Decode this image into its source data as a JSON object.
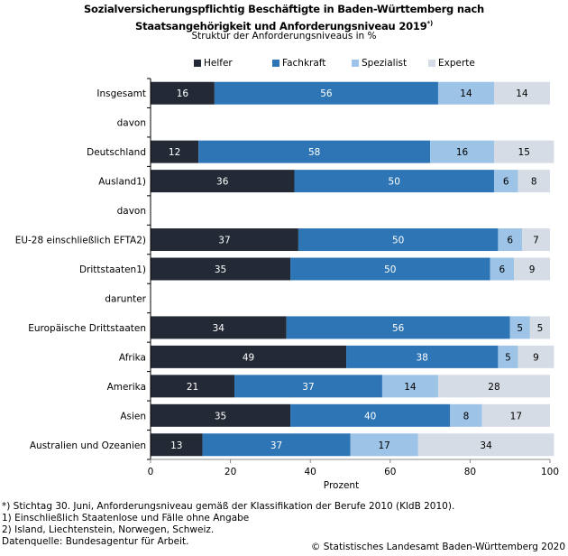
{
  "chart_data": {
    "type": "bar",
    "orientation": "horizontal",
    "stacked": true,
    "title": "Sozialversicherungspflichtig Beschäftigte in Baden-Württemberg nach Staatsangehörigkeit und Anforderungsniveau 2019",
    "title_line1": "Sozialversicherungspflichtig Beschäftigte in Baden-Württemberg nach",
    "title_line2": "Staatsangehörigkeit und Anforderungsniveau 2019",
    "title_mark": "*)",
    "subtitle": "Struktur der Anforderungsniveaus in %",
    "xlabel": "Prozent",
    "ylabel": "",
    "xlim": [
      0,
      100
    ],
    "xticks": [
      0,
      20,
      40,
      60,
      80,
      100
    ],
    "legend_position": "top",
    "categories": [
      "Insgesamt",
      "davon",
      "Deutschland",
      "Ausland1)",
      "davon",
      "EU-28 einschließlich EFTA2)",
      "Drittstaaten1)",
      "darunter",
      "Europäische Drittstaaten",
      "Afrika",
      "Amerika",
      "Asien",
      "Australien und Ozeanien"
    ],
    "series": [
      {
        "name": "Helfer",
        "color": "#232a36",
        "label_color": "#ffffff",
        "values": [
          16,
          null,
          12,
          36,
          null,
          37,
          35,
          null,
          34,
          49,
          21,
          35,
          13
        ]
      },
      {
        "name": "Fachkraft",
        "color": "#2e75b6",
        "label_color": "#ffffff",
        "values": [
          56,
          null,
          58,
          50,
          null,
          50,
          50,
          null,
          56,
          38,
          37,
          40,
          37
        ]
      },
      {
        "name": "Spezialist",
        "color": "#9dc3e6",
        "label_color": "#000000",
        "values": [
          14,
          null,
          16,
          6,
          null,
          6,
          6,
          null,
          5,
          5,
          14,
          8,
          17
        ]
      },
      {
        "name": "Experte",
        "color": "#d6dce5",
        "label_color": "#000000",
        "values": [
          14,
          null,
          15,
          8,
          null,
          7,
          9,
          null,
          5,
          9,
          28,
          17,
          34
        ]
      }
    ]
  },
  "footnotes": [
    "*) Stichtag 30. Juni, Anforderungsniveau gemäß der Klassifikation der Berufe 2010 (KldB 2010).",
    "1) Einschließlich Staatenlose und Fälle ohne Angabe",
    "2) Island, Liechtenstein, Norwegen, Schweiz.",
    "Datenquelle: Bundesagentur für Arbeit."
  ],
  "copyright": "© Statistisches Landesamt Baden-Württemberg 2020"
}
